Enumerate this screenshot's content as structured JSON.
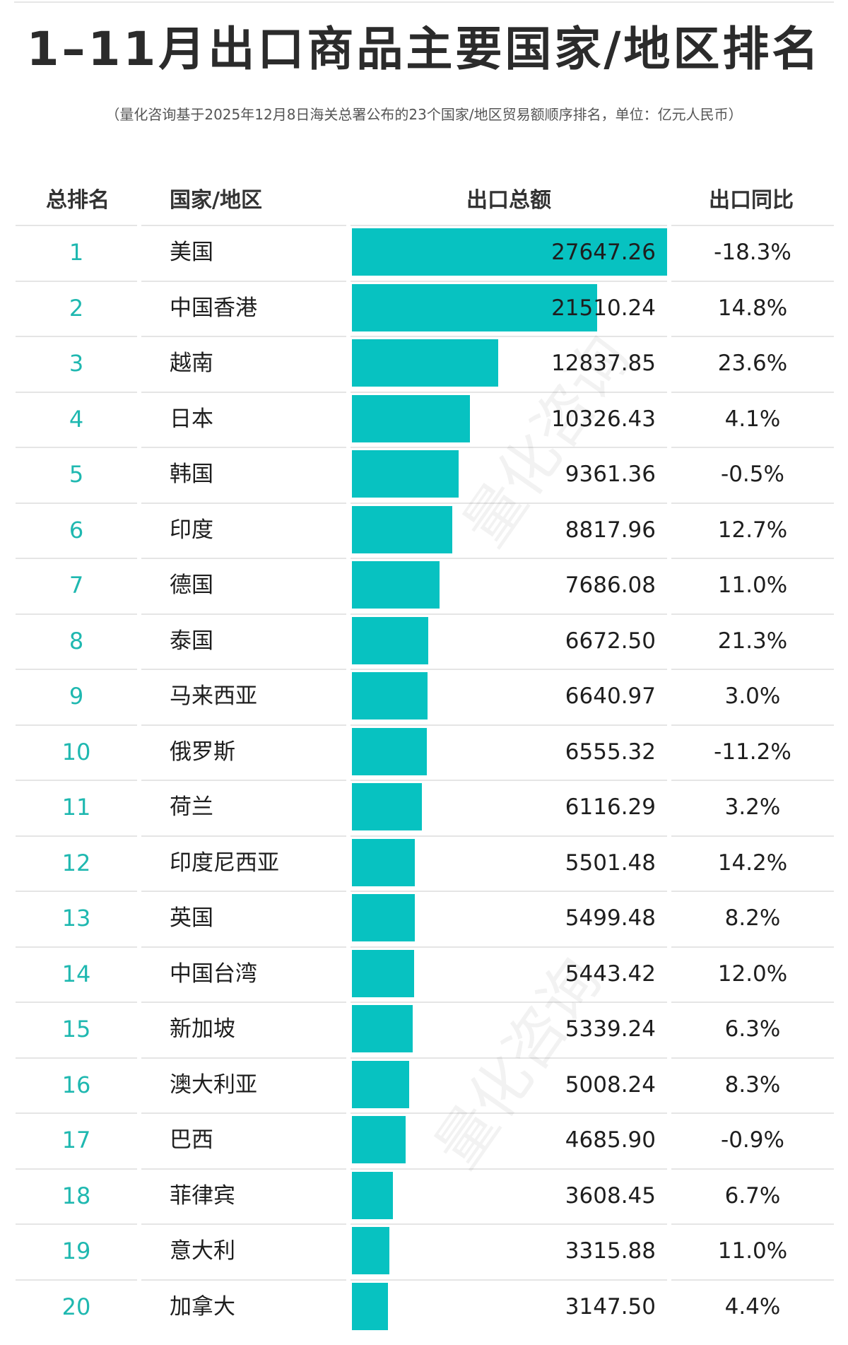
{
  "header": {
    "title": "1–11月出口商品主要国家/地区排名",
    "subtitle": "（量化咨询基于2025年12月8日海关总署公布的23个国家/地区贸易额顺序排名，单位：亿元人民币）"
  },
  "columns": {
    "rank": "总排名",
    "country": "国家/地区",
    "amount": "出口总额",
    "yoy": "出口同比"
  },
  "watermark": "量化咨询",
  "chart_data": {
    "type": "bar",
    "orientation": "horizontal",
    "title": "1–11月出口商品主要国家/地区排名",
    "subtitle": "（量化咨询基于2025年12月8日海关总署公布的23个国家/地区贸易额顺序排名，单位：亿元人民币）",
    "bar_color": "#07c2c1",
    "xlim": [
      0,
      27647.26
    ],
    "rows": [
      {
        "rank": "1",
        "country": "美国",
        "value": 27647.26,
        "value_label": "27647.26",
        "yoy": "-18.3%"
      },
      {
        "rank": "2",
        "country": "中国香港",
        "value": 21510.24,
        "value_label": "21510.24",
        "yoy": "14.8%"
      },
      {
        "rank": "3",
        "country": "越南",
        "value": 12837.85,
        "value_label": "12837.85",
        "yoy": "23.6%"
      },
      {
        "rank": "4",
        "country": "日本",
        "value": 10326.43,
        "value_label": "10326.43",
        "yoy": "4.1%"
      },
      {
        "rank": "5",
        "country": "韩国",
        "value": 9361.36,
        "value_label": "9361.36",
        "yoy": "-0.5%"
      },
      {
        "rank": "6",
        "country": "印度",
        "value": 8817.96,
        "value_label": "8817.96",
        "yoy": "12.7%"
      },
      {
        "rank": "7",
        "country": "德国",
        "value": 7686.08,
        "value_label": "7686.08",
        "yoy": "11.0%"
      },
      {
        "rank": "8",
        "country": "泰国",
        "value": 6672.5,
        "value_label": "6672.50",
        "yoy": "21.3%"
      },
      {
        "rank": "9",
        "country": "马来西亚",
        "value": 6640.97,
        "value_label": "6640.97",
        "yoy": "3.0%"
      },
      {
        "rank": "10",
        "country": "俄罗斯",
        "value": 6555.32,
        "value_label": "6555.32",
        "yoy": "-11.2%"
      },
      {
        "rank": "11",
        "country": "荷兰",
        "value": 6116.29,
        "value_label": "6116.29",
        "yoy": "3.2%"
      },
      {
        "rank": "12",
        "country": "印度尼西亚",
        "value": 5501.48,
        "value_label": "5501.48",
        "yoy": "14.2%"
      },
      {
        "rank": "13",
        "country": "英国",
        "value": 5499.48,
        "value_label": "5499.48",
        "yoy": "8.2%"
      },
      {
        "rank": "14",
        "country": "中国台湾",
        "value": 5443.42,
        "value_label": "5443.42",
        "yoy": "12.0%"
      },
      {
        "rank": "15",
        "country": "新加坡",
        "value": 5339.24,
        "value_label": "5339.24",
        "yoy": "6.3%"
      },
      {
        "rank": "16",
        "country": "澳大利亚",
        "value": 5008.24,
        "value_label": "5008.24",
        "yoy": "8.3%"
      },
      {
        "rank": "17",
        "country": "巴西",
        "value": 4685.9,
        "value_label": "4685.90",
        "yoy": "-0.9%"
      },
      {
        "rank": "18",
        "country": "菲律宾",
        "value": 3608.45,
        "value_label": "3608.45",
        "yoy": "6.7%"
      },
      {
        "rank": "19",
        "country": "意大利",
        "value": 3315.88,
        "value_label": "3315.88",
        "yoy": "11.0%"
      },
      {
        "rank": "20",
        "country": "加拿大",
        "value": 3147.5,
        "value_label": "3147.50",
        "yoy": "4.4%"
      }
    ]
  }
}
